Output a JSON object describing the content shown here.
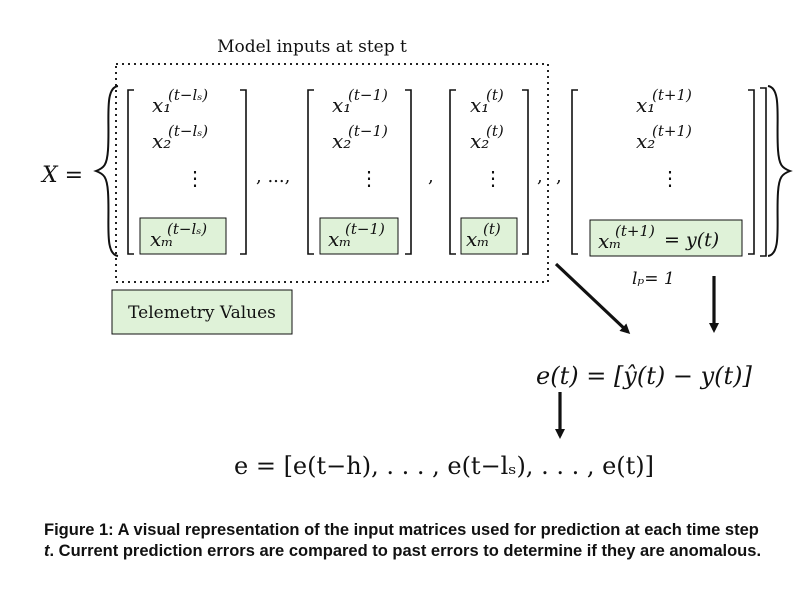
{
  "diagram": {
    "top_label": "Model inputs at step t",
    "lhs": "X =",
    "telemetry_label": "Telemetry Values",
    "separators": [
      ", ...,",
      ",",
      ",",
      ","
    ],
    "columns": [
      {
        "x1": "x₁",
        "x1_sup": "(t−lₛ)",
        "x2": "x₂",
        "x2_sup": "(t−lₛ)",
        "xm": "xₘ",
        "xm_sup": "(t−lₛ)"
      },
      {
        "x1": "x₁",
        "x1_sup": "(t−1)",
        "x2": "x₂",
        "x2_sup": "(t−1)",
        "xm": "xₘ",
        "xm_sup": "(t−1)"
      },
      {
        "x1": "x₁",
        "x1_sup": "(t)",
        "x2": "x₂",
        "x2_sup": "(t)",
        "xm": "xₘ",
        "xm_sup": "(t)"
      },
      {
        "x1": "x₁",
        "x1_sup": "(t+1)",
        "x2": "x₂",
        "x2_sup": "(t+1)",
        "xm": "xₘ",
        "xm_sup": "(t+1)",
        "xm_extra": "= y(t)"
      }
    ],
    "lp_label": "lₚ= 1",
    "error_eq": "e(t) = [ŷ(t) − y(t)]",
    "error_vector": "e = [e(t−h), . . . , e(t−lₛ), . . . , e(t)]"
  },
  "caption": {
    "prefix": "Figure 1: A visual representation of the input matrices used for prediction at each time step ",
    "t": "t",
    "suffix": ". Current prediction errors are compared to past errors to determine if they are anomalous."
  }
}
